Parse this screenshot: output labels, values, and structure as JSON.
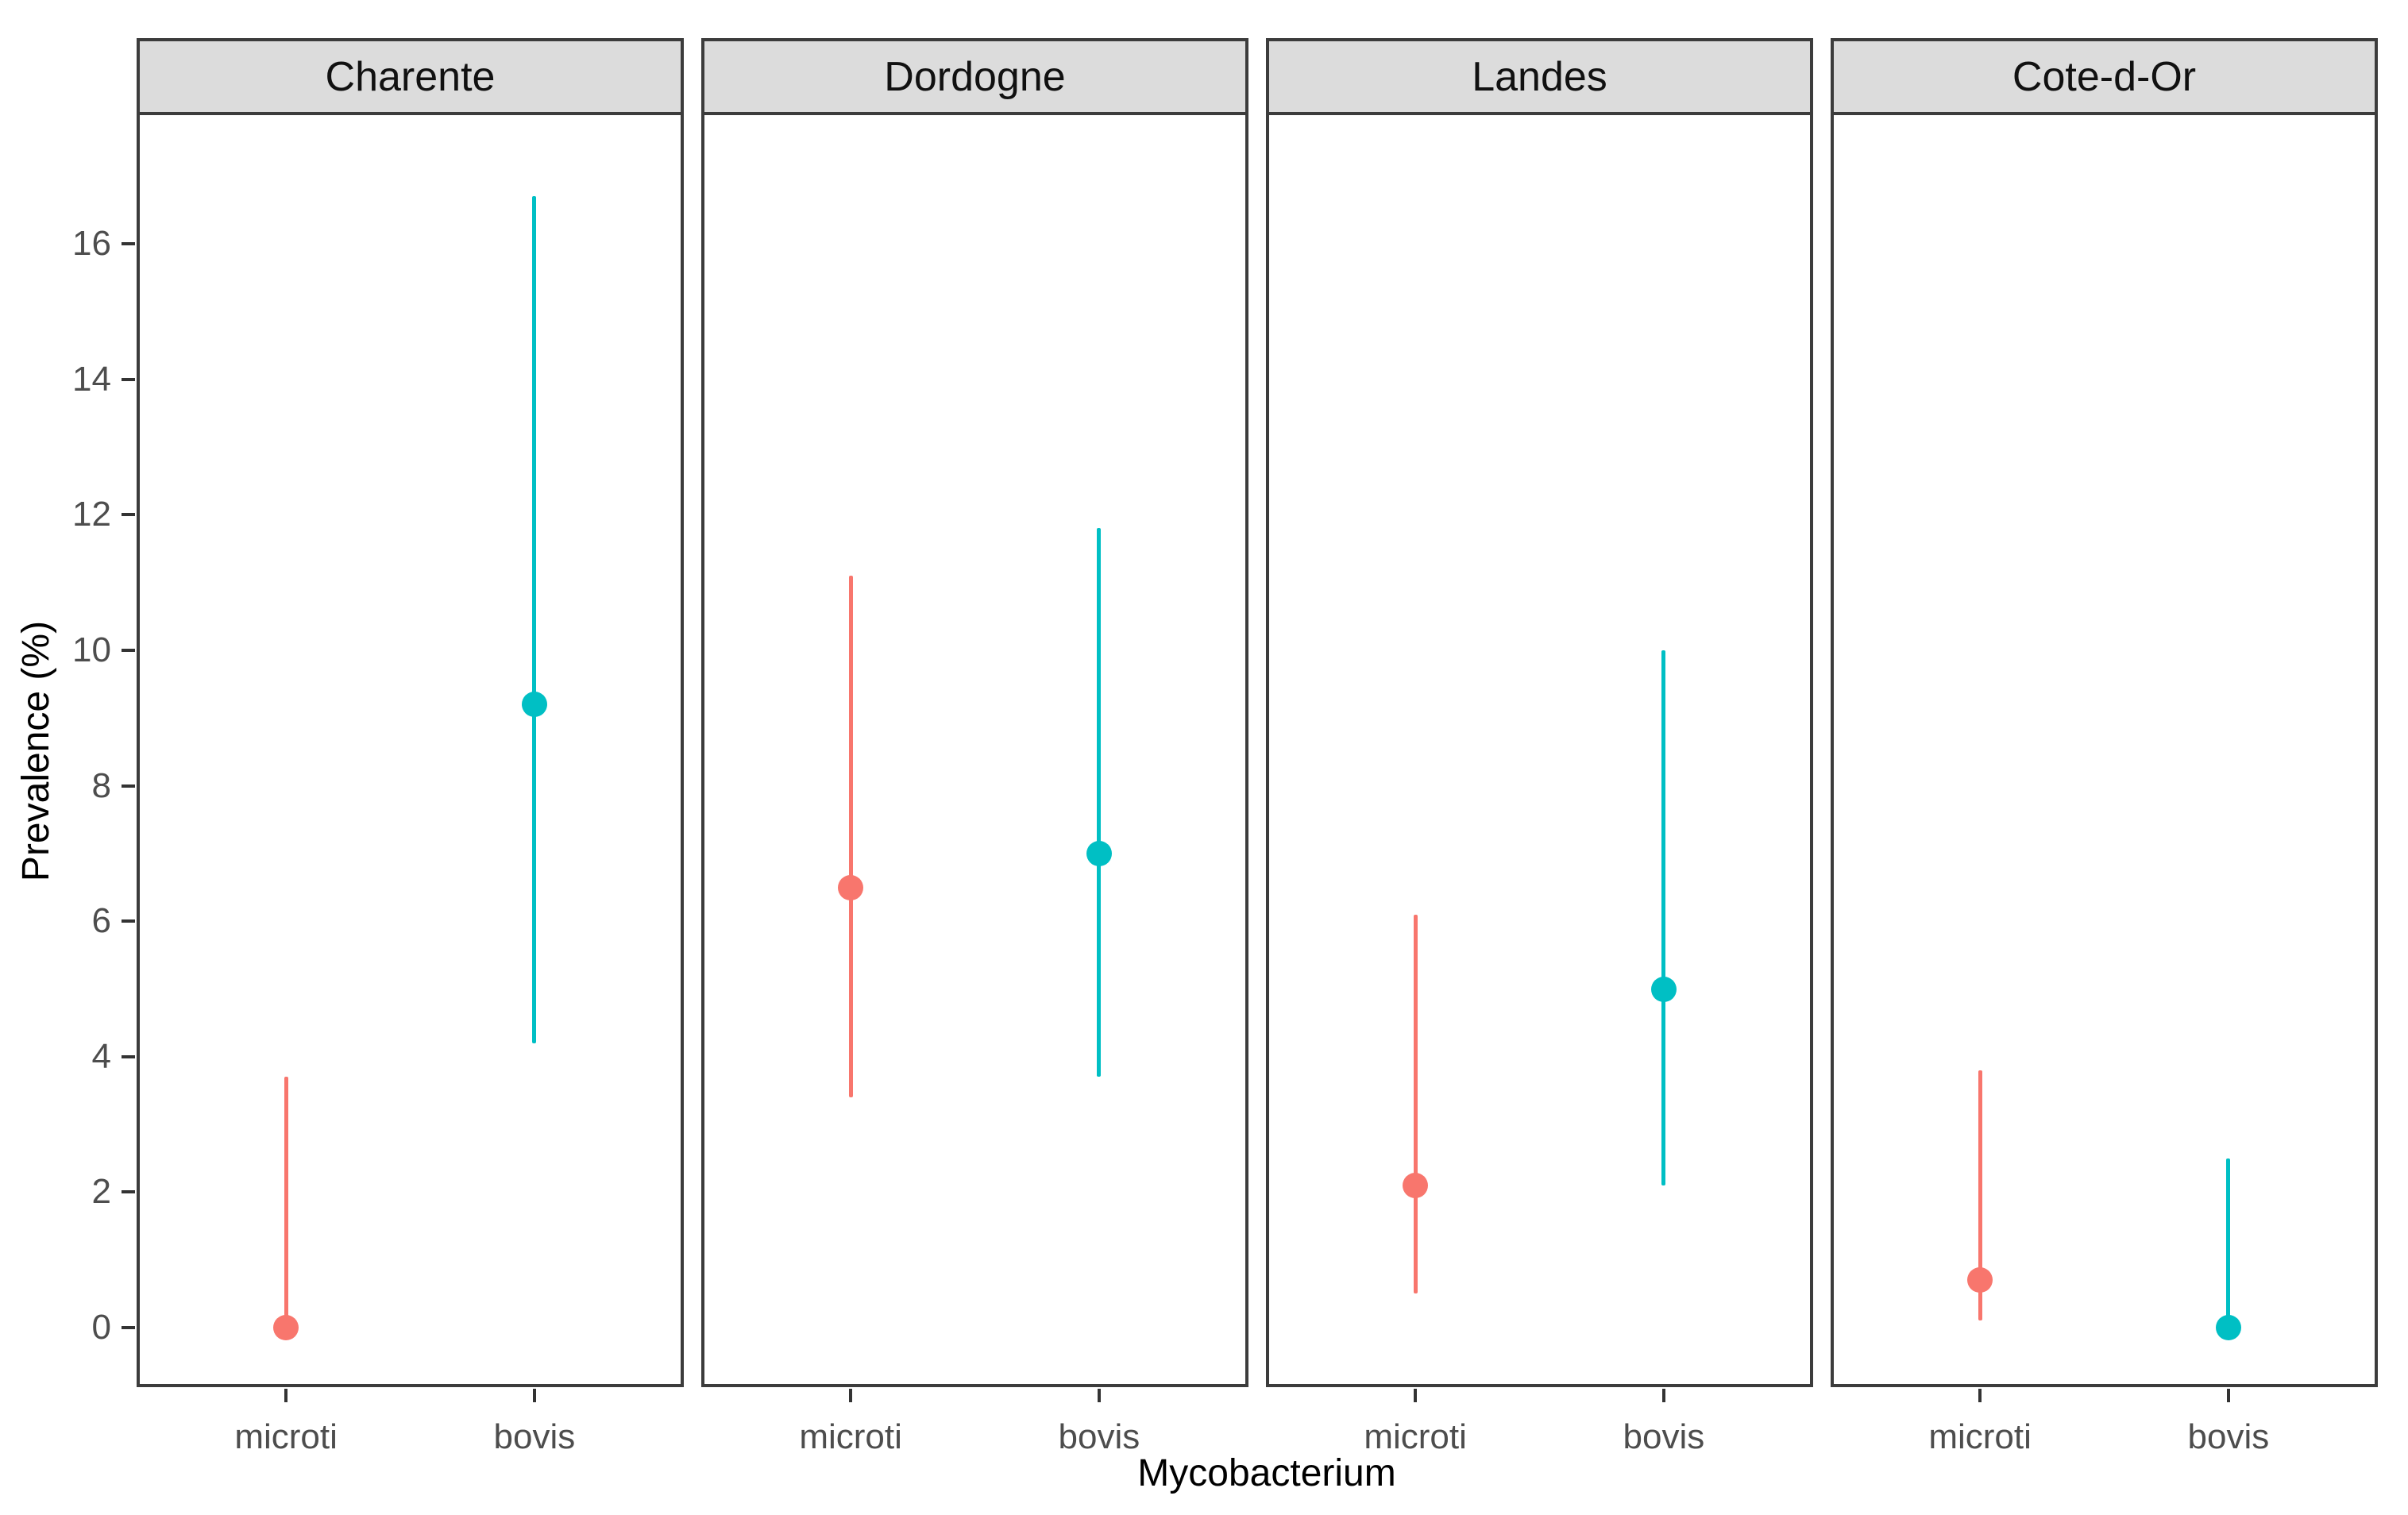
{
  "chart_data": {
    "type": "scatter",
    "subtype": "pointrange-facets",
    "title": "",
    "xlabel": "Mycobacterium",
    "ylabel": "Prevalence (%)",
    "facets": [
      "Charente",
      "Dordogne",
      "Landes",
      "Cote-d-Or"
    ],
    "categories": [
      "microti",
      "bovis"
    ],
    "colors": {
      "microti": "#F8766D",
      "bovis": "#00BFC4"
    },
    "y_ticks": [
      0,
      2,
      4,
      6,
      8,
      10,
      12,
      14,
      16
    ],
    "ylim": [
      -0.9,
      17.9
    ],
    "grid": "off",
    "legend": "none",
    "strip_fill": "#dcdcdc",
    "panel_border": "#3c3c3c",
    "data": [
      {
        "facet": "Charente",
        "points": [
          {
            "x": "microti",
            "y": 0.0,
            "lo": 0.0,
            "hi": 3.7
          },
          {
            "x": "bovis",
            "y": 9.2,
            "lo": 4.2,
            "hi": 16.7
          }
        ]
      },
      {
        "facet": "Dordogne",
        "points": [
          {
            "x": "microti",
            "y": 6.5,
            "lo": 3.4,
            "hi": 11.1
          },
          {
            "x": "bovis",
            "y": 7.0,
            "lo": 3.7,
            "hi": 11.8
          }
        ]
      },
      {
        "facet": "Landes",
        "points": [
          {
            "x": "microti",
            "y": 2.1,
            "lo": 0.5,
            "hi": 6.1
          },
          {
            "x": "bovis",
            "y": 5.0,
            "lo": 2.1,
            "hi": 10.0
          }
        ]
      },
      {
        "facet": "Cote-d-Or",
        "points": [
          {
            "x": "microti",
            "y": 0.7,
            "lo": 0.1,
            "hi": 3.8
          },
          {
            "x": "bovis",
            "y": 0.0,
            "lo": 0.0,
            "hi": 2.5
          }
        ]
      }
    ]
  }
}
